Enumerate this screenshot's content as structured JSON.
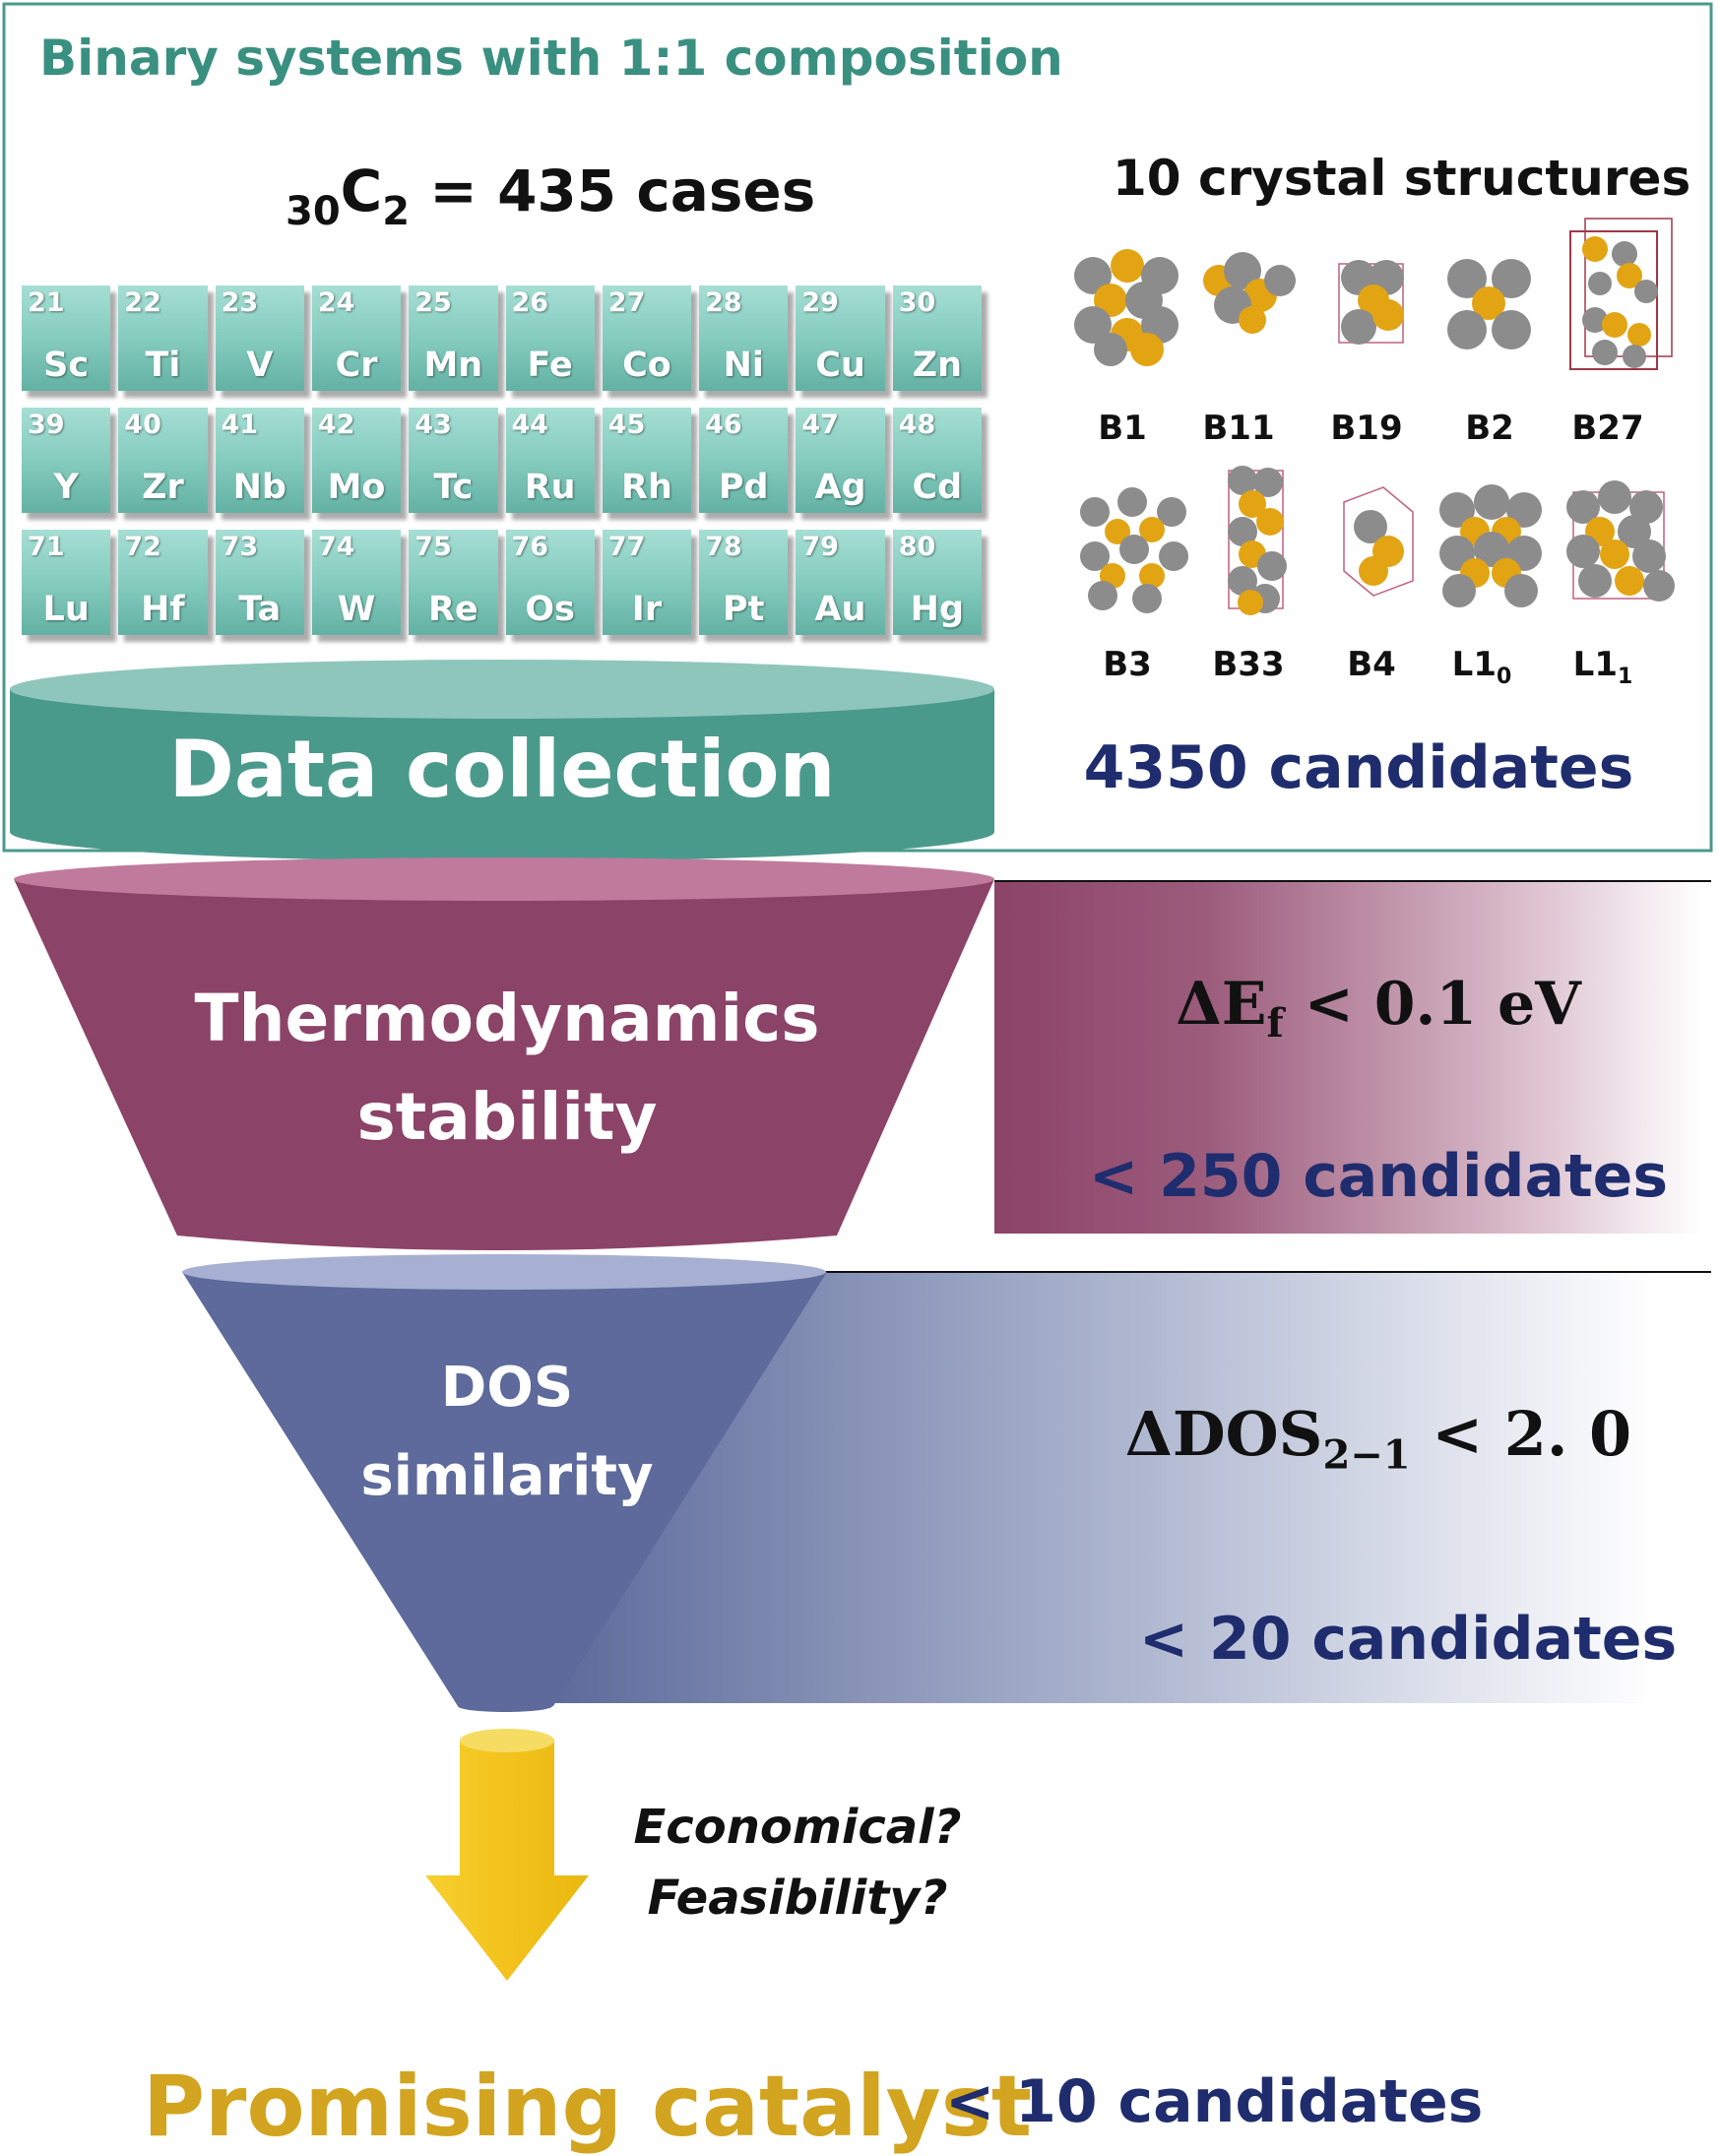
{
  "header": {
    "title": "Binary systems with 1:1 composition",
    "combo_pre": "30",
    "combo_c": "C",
    "combo_sub": "2",
    "combo_post": " = 435 cases",
    "structures_title": "10 crystal structures"
  },
  "elements": [
    {
      "num": "21",
      "sym": "Sc"
    },
    {
      "num": "22",
      "sym": "Ti"
    },
    {
      "num": "23",
      "sym": "V"
    },
    {
      "num": "24",
      "sym": "Cr"
    },
    {
      "num": "25",
      "sym": "Mn"
    },
    {
      "num": "26",
      "sym": "Fe"
    },
    {
      "num": "27",
      "sym": "Co"
    },
    {
      "num": "28",
      "sym": "Ni"
    },
    {
      "num": "29",
      "sym": "Cu"
    },
    {
      "num": "30",
      "sym": "Zn"
    },
    {
      "num": "39",
      "sym": "Y"
    },
    {
      "num": "40",
      "sym": "Zr"
    },
    {
      "num": "41",
      "sym": "Nb"
    },
    {
      "num": "42",
      "sym": "Mo"
    },
    {
      "num": "43",
      "sym": "Tc"
    },
    {
      "num": "44",
      "sym": "Ru"
    },
    {
      "num": "45",
      "sym": "Rh"
    },
    {
      "num": "46",
      "sym": "Pd"
    },
    {
      "num": "47",
      "sym": "Ag"
    },
    {
      "num": "48",
      "sym": "Cd"
    },
    {
      "num": "71",
      "sym": "Lu"
    },
    {
      "num": "72",
      "sym": "Hf"
    },
    {
      "num": "73",
      "sym": "Ta"
    },
    {
      "num": "74",
      "sym": "W"
    },
    {
      "num": "75",
      "sym": "Re"
    },
    {
      "num": "76",
      "sym": "Os"
    },
    {
      "num": "77",
      "sym": "Ir"
    },
    {
      "num": "78",
      "sym": "Pt"
    },
    {
      "num": "79",
      "sym": "Au"
    },
    {
      "num": "80",
      "sym": "Hg"
    }
  ],
  "structures": [
    "B1",
    "B11",
    "B19",
    "B2",
    "B27",
    "B3",
    "B33",
    "B4",
    "L1_0",
    "L1_1"
  ],
  "stages": {
    "collection": {
      "label": "Data collection",
      "count": "4350 candidates"
    },
    "thermo": {
      "label_line1": "Thermodynamics",
      "label_line2": "stability",
      "cond_main": "ΔE",
      "cond_sub": "f",
      "cond_rest": " < 0.1 eV",
      "count": "< 250 candidates"
    },
    "dos": {
      "label_line1": "DOS",
      "label_line2": "similarity",
      "cond_main": "ΔDOS",
      "cond_sub": "2−1",
      "cond_rest": " < 2. 0",
      "count": "< 20 candidates"
    }
  },
  "questions": {
    "line1": "Economical?",
    "line2": "Feasibility?"
  },
  "final": {
    "label": "Promising catalyst",
    "count": "< 10 candidates"
  },
  "colors": {
    "teal": "#4a9a8c",
    "teal_text": "#3a9080",
    "maroon": "#8c4368",
    "slate_blue": "#5d6a9b",
    "navy_text": "#1f2d6e",
    "gold": "#d2a41f",
    "arrow_yellow": "#f4c61f",
    "atom_gray": "#8c8c8c",
    "atom_gold": "#e3a414"
  }
}
